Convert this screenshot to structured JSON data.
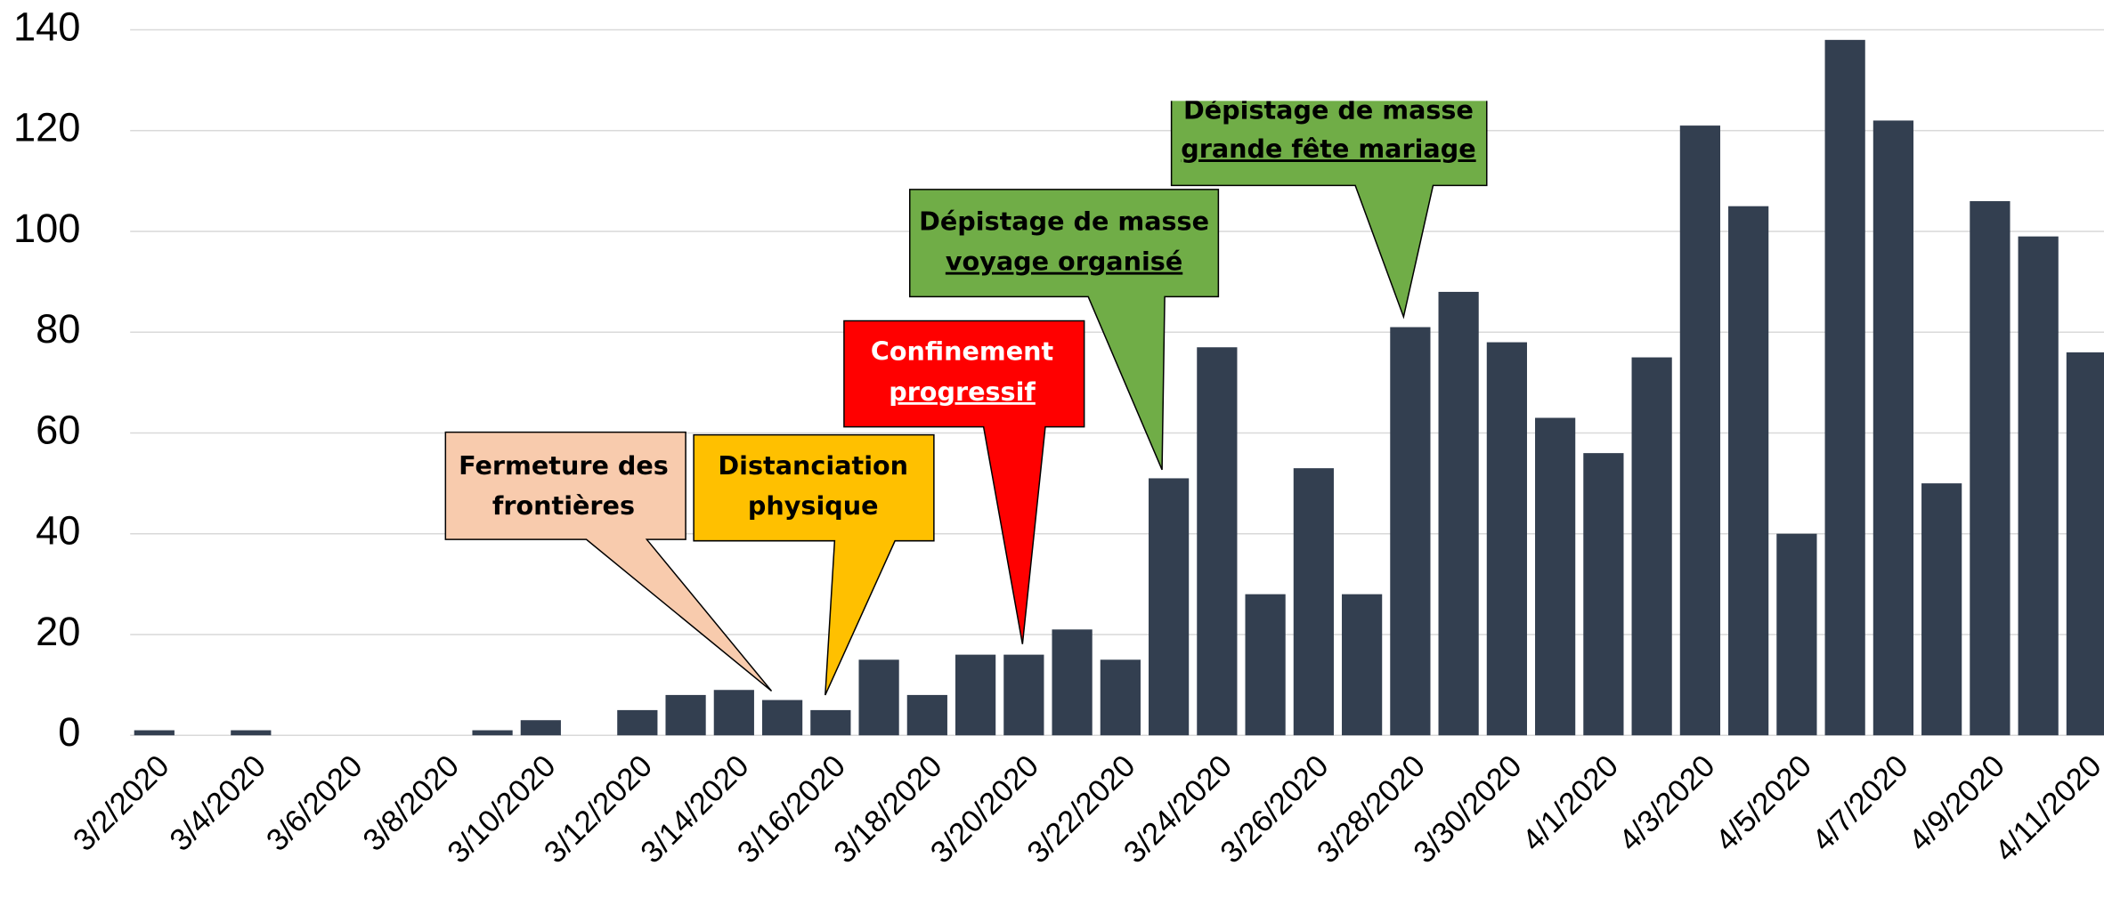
{
  "chart_data": {
    "type": "bar",
    "categories": [
      "3/2/2020",
      null,
      "3/4/2020",
      null,
      "3/6/2020",
      null,
      "3/8/2020",
      null,
      "3/10/2020",
      null,
      "3/12/2020",
      null,
      "3/14/2020",
      null,
      "3/16/2020",
      null,
      "3/18/2020",
      null,
      "3/20/2020",
      null,
      "3/22/2020",
      null,
      "3/24/2020",
      null,
      "3/26/2020",
      null,
      "3/28/2020",
      null,
      "3/30/2020",
      null,
      "4/1/2020",
      null,
      "4/3/2020",
      null,
      "4/5/2020",
      null,
      "4/7/2020",
      null,
      "4/9/2020",
      null,
      "4/11/2020"
    ],
    "values": [
      1,
      0,
      1,
      0,
      0,
      0,
      0,
      1,
      3,
      0,
      5,
      8,
      9,
      7,
      5,
      15,
      8,
      16,
      16,
      21,
      15,
      51,
      77,
      28,
      53,
      28,
      81,
      88,
      78,
      63,
      56,
      75,
      121,
      105,
      40,
      138,
      122,
      50,
      106,
      99,
      76
    ],
    "color": "#333f50",
    "ylim": [
      0,
      140
    ],
    "yticks": [
      0,
      20,
      40,
      60,
      80,
      100,
      120,
      140
    ],
    "grid": true,
    "annotations": [
      {
        "lines": [
          "Fermeture des",
          "frontières"
        ]
      },
      {
        "lines": [
          "Distanciation",
          "physique"
        ]
      },
      {
        "lines": [
          "Confinement",
          "progressif"
        ]
      },
      {
        "lines": [
          "Dépistage de masse",
          "voyage organisé"
        ]
      },
      {
        "lines": [
          "Dépistage de masse",
          "grande fête mariage"
        ]
      }
    ]
  }
}
